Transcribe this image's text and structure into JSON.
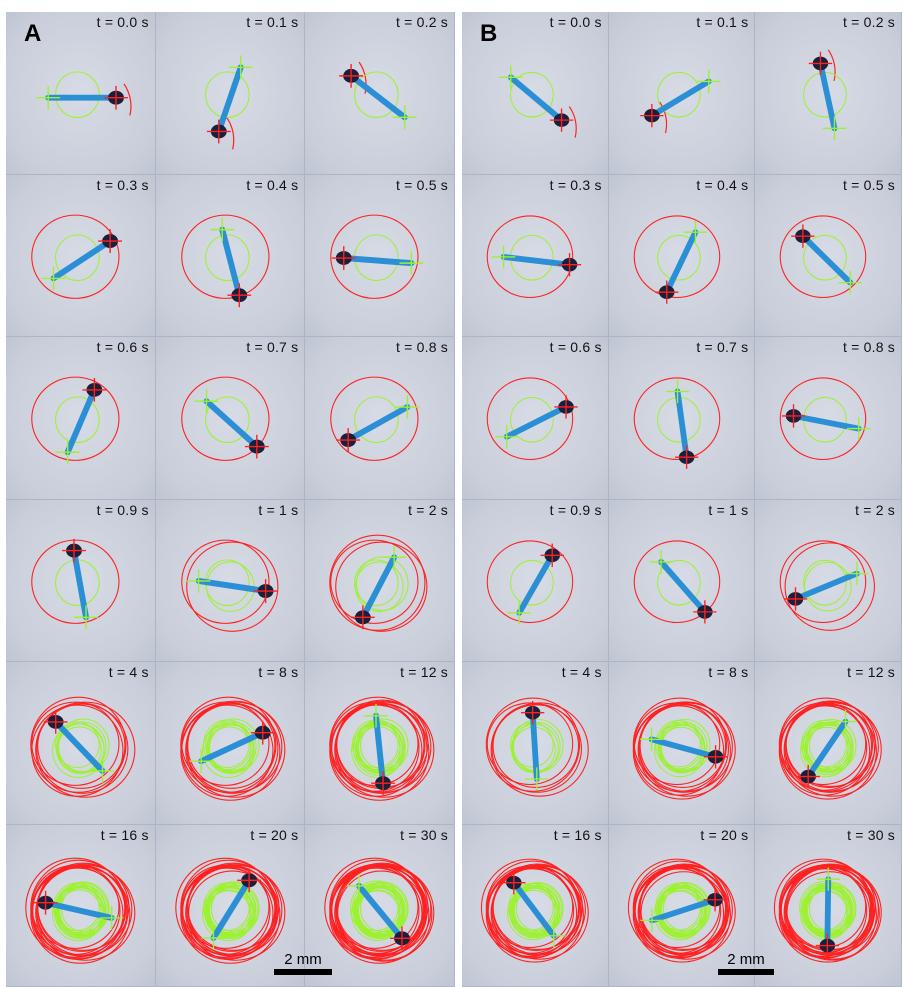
{
  "panels": [
    {
      "label": "A",
      "scale_bar": "2 mm",
      "frames": [
        {
          "time": "t = 0.0 s",
          "loops": 0
        },
        {
          "time": "t = 0.1 s",
          "loops": 0
        },
        {
          "time": "t = 0.2 s",
          "loops": 0
        },
        {
          "time": "t = 0.3 s",
          "loops": 1
        },
        {
          "time": "t = 0.4 s",
          "loops": 1
        },
        {
          "time": "t = 0.5 s",
          "loops": 1
        },
        {
          "time": "t = 0.6 s",
          "loops": 1
        },
        {
          "time": "t = 0.7 s",
          "loops": 1
        },
        {
          "time": "t = 0.8 s",
          "loops": 1
        },
        {
          "time": "t = 0.9 s",
          "loops": 1
        },
        {
          "time": "t = 1 s",
          "loops": 2
        },
        {
          "time": "t = 2 s",
          "loops": 3
        },
        {
          "time": "t = 4 s",
          "loops": 6
        },
        {
          "time": "t = 8 s",
          "loops": 8
        },
        {
          "time": "t = 12 s",
          "loops": 10
        },
        {
          "time": "t = 16 s",
          "loops": 12
        },
        {
          "time": "t = 20 s",
          "loops": 13
        },
        {
          "time": "t = 30 s",
          "loops": 15
        }
      ]
    },
    {
      "label": "B",
      "scale_bar": "2 mm",
      "frames": [
        {
          "time": "t = 0.0 s",
          "loops": 0
        },
        {
          "time": "t = 0.1 s",
          "loops": 0
        },
        {
          "time": "t = 0.2 s",
          "loops": 0
        },
        {
          "time": "t = 0.3 s",
          "loops": 1
        },
        {
          "time": "t = 0.4 s",
          "loops": 1
        },
        {
          "time": "t = 0.5 s",
          "loops": 1
        },
        {
          "time": "t = 0.6 s",
          "loops": 1
        },
        {
          "time": "t = 0.7 s",
          "loops": 1
        },
        {
          "time": "t = 0.8 s",
          "loops": 1
        },
        {
          "time": "t = 0.9 s",
          "loops": 1
        },
        {
          "time": "t = 1 s",
          "loops": 1
        },
        {
          "time": "t = 2 s",
          "loops": 2
        },
        {
          "time": "t = 4 s",
          "loops": 5
        },
        {
          "time": "t = 8 s",
          "loops": 8
        },
        {
          "time": "t = 12 s",
          "loops": 10
        },
        {
          "time": "t = 16 s",
          "loops": 12
        },
        {
          "time": "t = 20 s",
          "loops": 13
        },
        {
          "time": "t = 30 s",
          "loops": 15
        }
      ]
    }
  ],
  "colors": {
    "background": "#cdd2dd",
    "body": "#2b8fd6",
    "head": "#1a1f3a",
    "head_trace": "#ff2020",
    "tail_trace": "#9cf22e"
  }
}
